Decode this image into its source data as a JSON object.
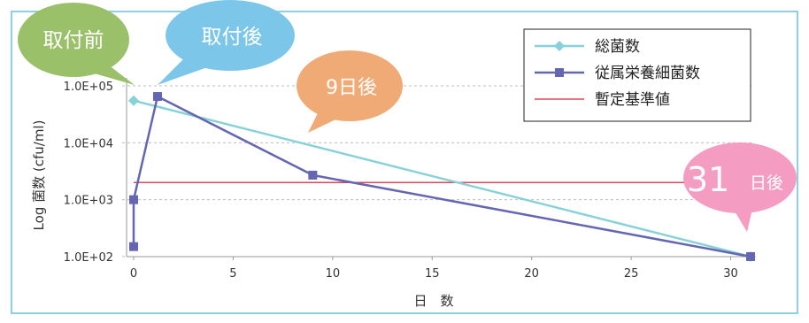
{
  "chart_data": {
    "type": "line",
    "xlabel": "日　数",
    "ylabel": "Log 菌数 (cfu/ml)",
    "x_ticks": [
      "0",
      "5",
      "10",
      "15",
      "20",
      "25",
      "30"
    ],
    "y_ticks": [
      "1.0E+02",
      "1.0E+03",
      "1.0E+04",
      "1.0E+05"
    ],
    "xlim": [
      0,
      31
    ],
    "ylim": [
      100,
      100000
    ],
    "y_scale": "log",
    "grid": "horizontal dashed",
    "legend_position": "top-right",
    "series": [
      {
        "name": "総菌数",
        "color": "#86d2d8",
        "marker": "diamond",
        "x": [
          0,
          31
        ],
        "y": [
          55000,
          100
        ]
      },
      {
        "name": "従属栄養細菌数",
        "color": "#6466b2",
        "marker": "square",
        "x": [
          0,
          0,
          1.2,
          9,
          31
        ],
        "y": [
          150,
          1000,
          65000,
          2700,
          100
        ]
      },
      {
        "name": "暫定基準値",
        "color": "#e0455a",
        "marker": "none",
        "x": [
          0,
          31
        ],
        "y": [
          2000,
          2000
        ]
      }
    ],
    "annotations": [
      {
        "text": "取付前",
        "color": "#9bc06a"
      },
      {
        "text": "取付後",
        "color": "#7cc6ea"
      },
      {
        "text": "9日後",
        "color": "#f0aa75"
      },
      {
        "text_big": "31",
        "text_small": "日後",
        "color": "#f59cc3"
      }
    ]
  }
}
